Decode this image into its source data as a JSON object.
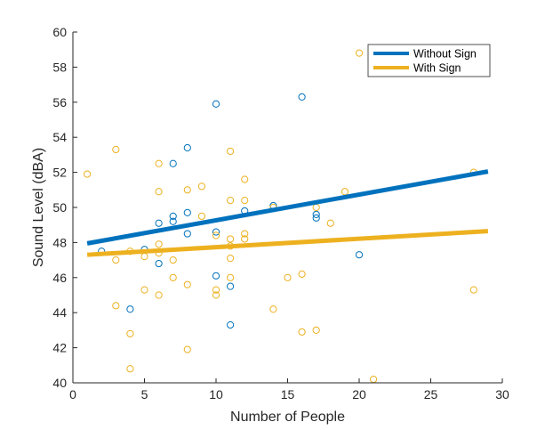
{
  "chart_data": {
    "type": "scatter",
    "xlabel": "Number of People",
    "ylabel": "Sound Level (dBA)",
    "xlim": [
      0,
      30
    ],
    "ylim": [
      40,
      60
    ],
    "xticks": [
      0,
      5,
      10,
      15,
      20,
      25,
      30
    ],
    "yticks": [
      40,
      42,
      44,
      46,
      48,
      50,
      52,
      54,
      56,
      58,
      60
    ],
    "grid": false,
    "legend_position": "top-right",
    "series": [
      {
        "name": "Without Sign",
        "color": "#0072BD",
        "points": [
          [
            2,
            47.5
          ],
          [
            4,
            44.2
          ],
          [
            5,
            47.6
          ],
          [
            6,
            49.1
          ],
          [
            6,
            46.8
          ],
          [
            7,
            52.5
          ],
          [
            7,
            49.5
          ],
          [
            7,
            49.2
          ],
          [
            8,
            53.4
          ],
          [
            8,
            49.7
          ],
          [
            8,
            48.5
          ],
          [
            10,
            55.9
          ],
          [
            10,
            48.6
          ],
          [
            10,
            46.1
          ],
          [
            11,
            45.5
          ],
          [
            11,
            43.3
          ],
          [
            12,
            49.8
          ],
          [
            14,
            50.1
          ],
          [
            16,
            56.3
          ],
          [
            17,
            49.6
          ],
          [
            17,
            49.4
          ],
          [
            20,
            47.3
          ]
        ],
        "fit": {
          "x": [
            1,
            29
          ],
          "y": [
            47.95,
            52.05
          ]
        }
      },
      {
        "name": "With Sign",
        "color": "#EDB120",
        "points": [
          [
            1,
            51.9
          ],
          [
            3,
            53.3
          ],
          [
            3,
            47.0
          ],
          [
            3,
            44.4
          ],
          [
            4,
            47.5
          ],
          [
            4,
            42.8
          ],
          [
            4,
            40.8
          ],
          [
            5,
            47.2
          ],
          [
            5,
            45.3
          ],
          [
            6,
            52.5
          ],
          [
            6,
            50.9
          ],
          [
            6,
            47.9
          ],
          [
            6,
            47.4
          ],
          [
            6,
            45.0
          ],
          [
            7,
            47.0
          ],
          [
            7,
            46.0
          ],
          [
            8,
            51.0
          ],
          [
            8,
            45.6
          ],
          [
            8,
            41.9
          ],
          [
            9,
            51.2
          ],
          [
            9,
            49.5
          ],
          [
            10,
            48.4
          ],
          [
            10,
            45.3
          ],
          [
            10,
            45.0
          ],
          [
            11,
            53.2
          ],
          [
            11,
            50.4
          ],
          [
            11,
            48.2
          ],
          [
            11,
            47.8
          ],
          [
            11,
            47.1
          ],
          [
            11,
            46.0
          ],
          [
            12,
            51.6
          ],
          [
            12,
            50.4
          ],
          [
            12,
            48.5
          ],
          [
            12,
            48.2
          ],
          [
            14,
            50.0
          ],
          [
            14,
            44.2
          ],
          [
            15,
            46.0
          ],
          [
            16,
            46.2
          ],
          [
            16,
            42.9
          ],
          [
            17,
            50.0
          ],
          [
            17,
            43.0
          ],
          [
            18,
            49.1
          ],
          [
            19,
            50.9
          ],
          [
            20,
            58.8
          ],
          [
            21,
            40.2
          ],
          [
            28,
            52.0
          ],
          [
            28,
            45.3
          ]
        ],
        "fit": {
          "x": [
            1,
            29
          ],
          "y": [
            47.3,
            48.65
          ]
        }
      }
    ]
  }
}
